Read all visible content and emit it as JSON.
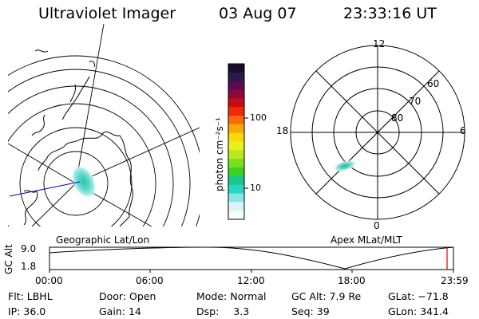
{
  "header": {
    "instrument": "Ultraviolet Imager",
    "date": "03 Aug 07",
    "time": "23:33:16 UT"
  },
  "geo_panel": {
    "label": "Geographic Lat/Lon"
  },
  "polar_panel": {
    "label": "Apex MLat/MLT",
    "hours": {
      "top": "12",
      "left": "18",
      "right": "6",
      "bottom": "0"
    },
    "lat_labels": [
      "60",
      "70",
      "80"
    ]
  },
  "colorbar": {
    "unit_label": "photon cm⁻²s⁻¹",
    "ticks": [
      "100",
      "10"
    ],
    "colors": [
      "#1a0a30",
      "#2a1a48",
      "#5a0a50",
      "#8a0a38",
      "#c80a14",
      "#ee2a0a",
      "#fa6a0a",
      "#f8a80a",
      "#f8d80a",
      "#e8f020",
      "#b8e81c",
      "#7ae01c",
      "#3ad028",
      "#1ac88a",
      "#2ad6c0",
      "#8ae6e6",
      "#d8f4f4",
      "#f4fbfb"
    ]
  },
  "altitude_plot": {
    "ylabel": "GC Alt",
    "yticks": [
      "9.0",
      "1.8"
    ],
    "xticks": [
      "00:00",
      "06:00",
      "12:00",
      "18:00",
      "23:59"
    ]
  },
  "footer": {
    "row1": [
      {
        "key": "Flt:",
        "value": "LBHL"
      },
      {
        "key": "Door:",
        "value": "Open"
      },
      {
        "key": "Mode:",
        "value": "Normal"
      },
      {
        "key": "GC Alt:",
        "value": "7.9 Re"
      },
      {
        "key": "GLat:",
        "value": "−71.8"
      }
    ],
    "row2": [
      {
        "key": "IP:",
        "value": "36.0"
      },
      {
        "key": "Gain:",
        "value": "14"
      },
      {
        "key": "Dsp:",
        "value": "3.3"
      },
      {
        "key": "Seq:",
        "value": "39"
      },
      {
        "key": "GLon:",
        "value": "341.4"
      }
    ]
  },
  "colors": {
    "line": "#000000",
    "track": "#0000c8",
    "marker": "#e00000"
  }
}
